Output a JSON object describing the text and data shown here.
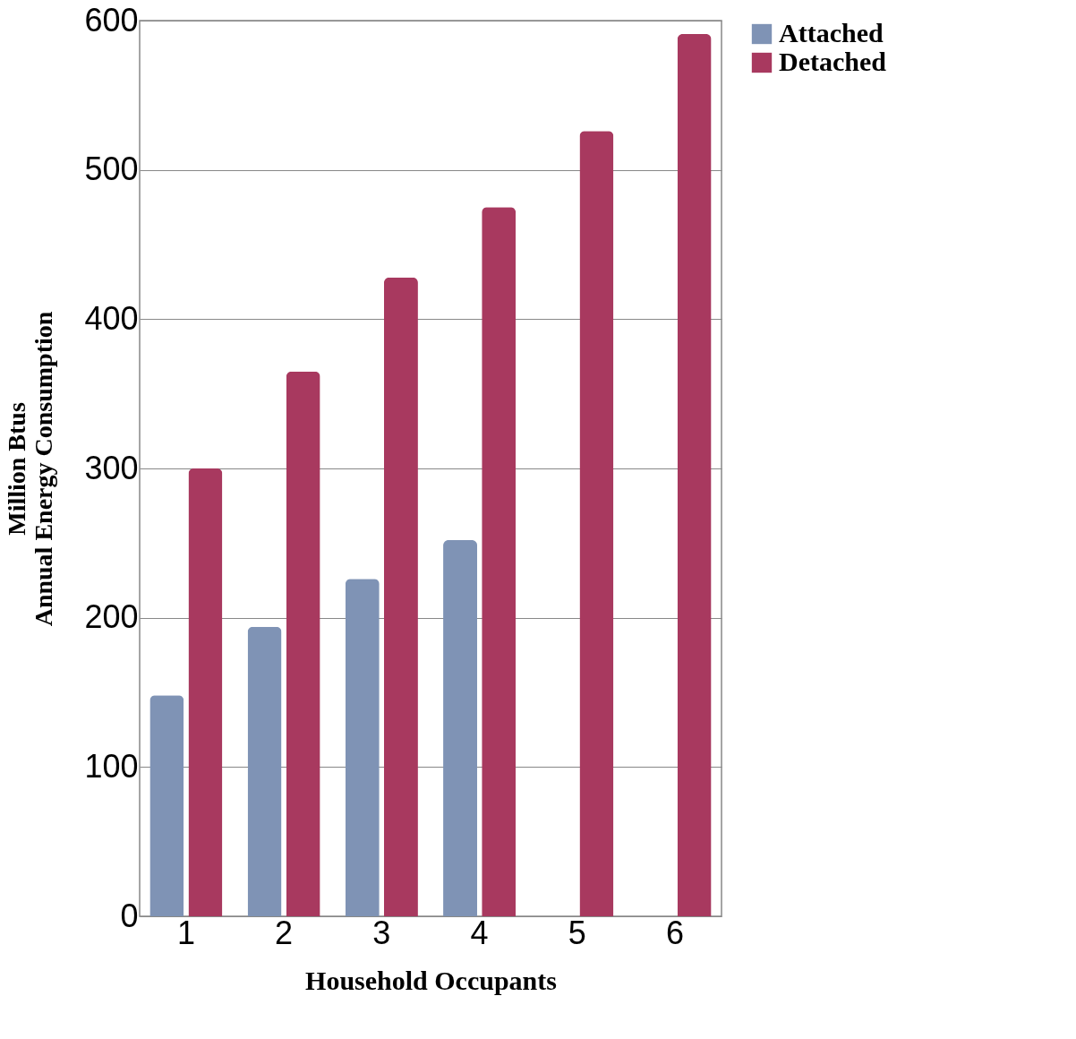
{
  "chart_data": {
    "type": "bar",
    "xlabel": "Household Occupants",
    "ylabel": "Million Btus\nAnnual Energy Consumption",
    "categories": [
      "1",
      "2",
      "3",
      "4",
      "5",
      "6"
    ],
    "series": [
      {
        "name": "Attached",
        "color": "#7f93b5",
        "values": [
          148,
          194,
          226,
          252,
          null,
          null
        ]
      },
      {
        "name": "Detached",
        "color": "#a8395f",
        "values": [
          300,
          365,
          428,
          475,
          526,
          591
        ]
      }
    ],
    "ylim": [
      0,
      600
    ],
    "yticks": [
      0,
      100,
      200,
      300,
      400,
      500,
      600
    ],
    "grid": "y",
    "legend": "right"
  }
}
